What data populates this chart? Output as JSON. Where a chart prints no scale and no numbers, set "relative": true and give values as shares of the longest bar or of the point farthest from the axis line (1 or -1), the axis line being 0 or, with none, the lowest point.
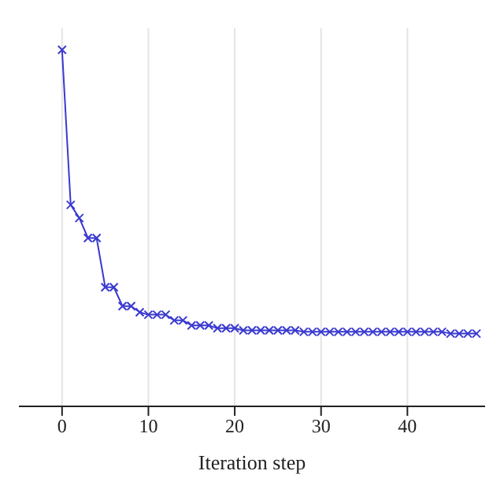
{
  "chart_data": {
    "type": "line",
    "relative": true,
    "xlabel": "Iteration step",
    "xlim": [
      -5,
      49
    ],
    "xticks": [
      0,
      10,
      20,
      30,
      40
    ],
    "grid": "x",
    "marker": "cross",
    "line_style": "solid",
    "x": [
      0,
      1,
      2,
      3,
      4,
      5,
      6,
      7,
      8,
      9,
      10,
      11,
      12,
      13,
      14,
      15,
      16,
      17,
      18,
      19,
      20,
      21,
      22,
      23,
      24,
      25,
      26,
      27,
      28,
      29,
      30,
      31,
      32,
      33,
      34,
      35,
      36,
      37,
      38,
      39,
      40,
      41,
      42,
      43,
      44,
      45,
      46,
      47,
      48
    ],
    "series": [
      {
        "color": "#3a3ad0",
        "values": [
          1,
          0.565,
          0.528,
          0.472,
          0.472,
          0.334,
          0.334,
          0.281,
          0.281,
          0.264,
          0.257,
          0.257,
          0.257,
          0.241,
          0.241,
          0.227,
          0.227,
          0.227,
          0.219,
          0.219,
          0.219,
          0.213,
          0.213,
          0.213,
          0.213,
          0.213,
          0.213,
          0.213,
          0.209,
          0.209,
          0.209,
          0.209,
          0.209,
          0.209,
          0.209,
          0.209,
          0.209,
          0.209,
          0.209,
          0.209,
          0.209,
          0.209,
          0.209,
          0.209,
          0.209,
          0.204,
          0.204,
          0.204,
          0.204
        ]
      }
    ]
  }
}
